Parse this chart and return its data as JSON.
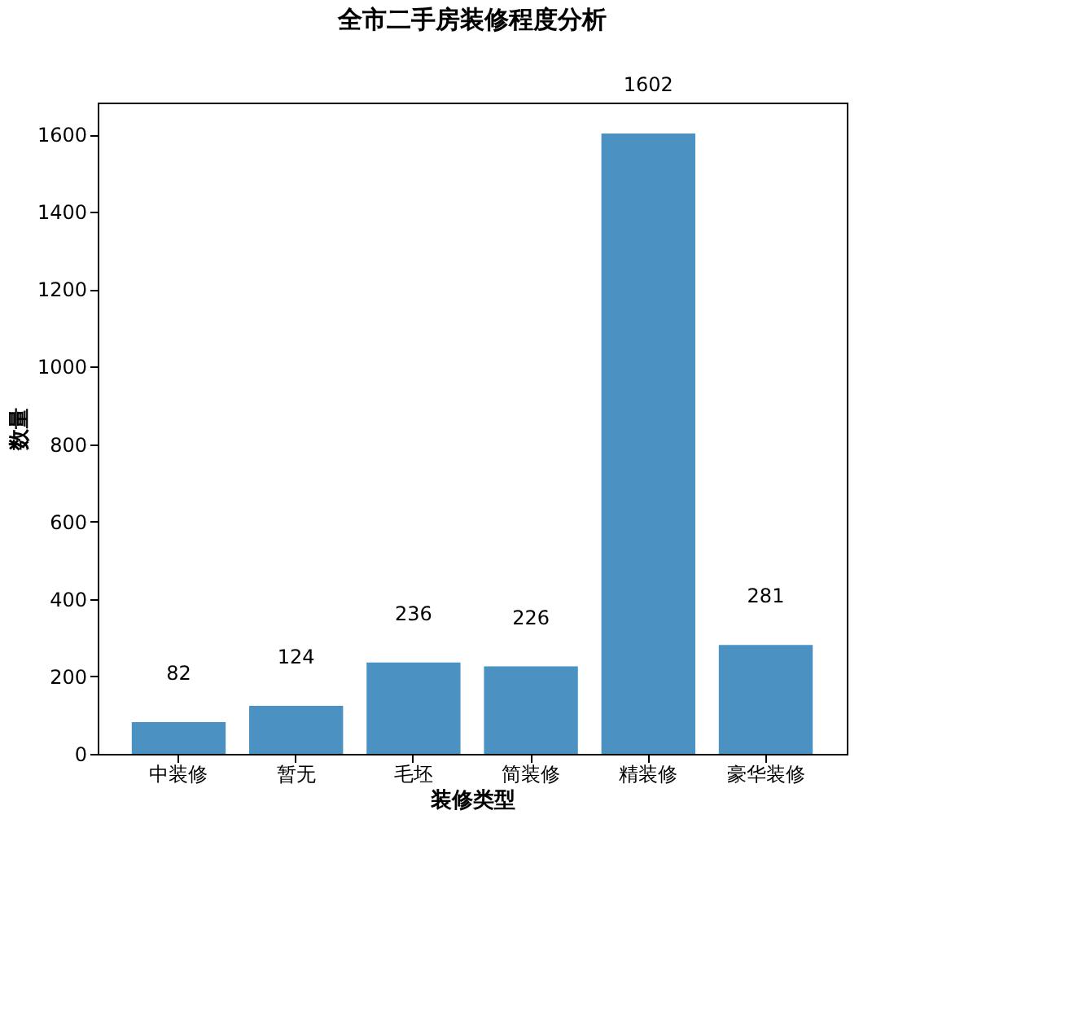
{
  "chart_data": {
    "type": "bar",
    "title": "全市二手房装修程度分析",
    "xlabel": "装修类型",
    "ylabel": "数量",
    "categories": [
      "中装修",
      "暂无",
      "毛坯",
      "简装修",
      "精装修",
      "豪华装修"
    ],
    "values": [
      82,
      124,
      236,
      226,
      1602,
      281
    ],
    "color": "#4b92c3",
    "ylim": [
      0,
      1682
    ],
    "yticks": [
      0,
      200,
      400,
      600,
      800,
      1000,
      1200,
      1400,
      1600
    ],
    "grid": false,
    "data_labels": true
  }
}
